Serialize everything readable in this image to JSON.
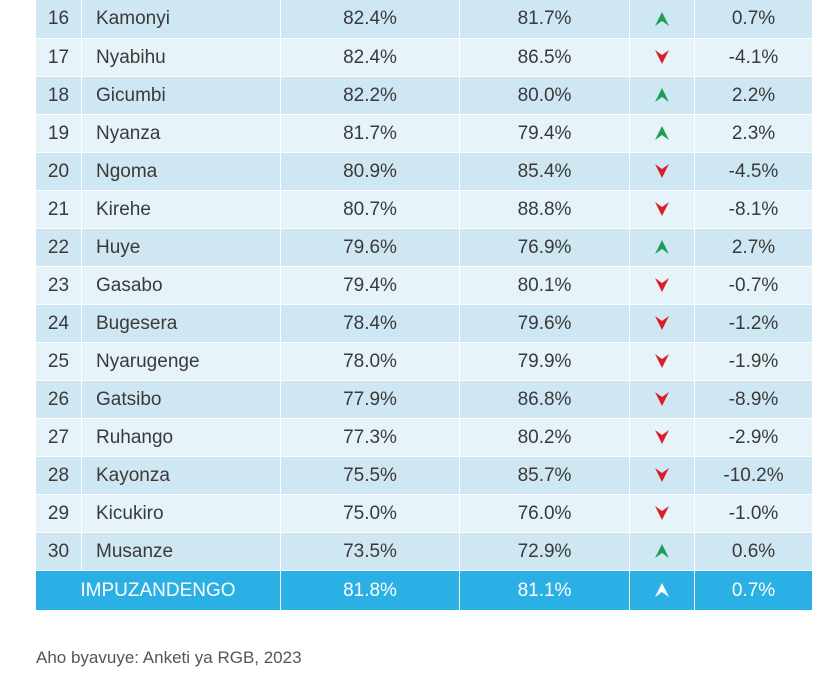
{
  "rows": [
    {
      "rank": "16",
      "district": "Kamonyi",
      "col_a": "82.4%",
      "col_b": "81.7%",
      "trend": "up",
      "diff": "0.7%"
    },
    {
      "rank": "17",
      "district": "Nyabihu",
      "col_a": "82.4%",
      "col_b": "86.5%",
      "trend": "down",
      "diff": "-4.1%"
    },
    {
      "rank": "18",
      "district": "Gicumbi",
      "col_a": "82.2%",
      "col_b": "80.0%",
      "trend": "up",
      "diff": "2.2%"
    },
    {
      "rank": "19",
      "district": "Nyanza",
      "col_a": "81.7%",
      "col_b": "79.4%",
      "trend": "up",
      "diff": "2.3%"
    },
    {
      "rank": "20",
      "district": "Ngoma",
      "col_a": "80.9%",
      "col_b": "85.4%",
      "trend": "down",
      "diff": "-4.5%"
    },
    {
      "rank": "21",
      "district": "Kirehe",
      "col_a": "80.7%",
      "col_b": "88.8%",
      "trend": "down",
      "diff": "-8.1%"
    },
    {
      "rank": "22",
      "district": "Huye",
      "col_a": "79.6%",
      "col_b": "76.9%",
      "trend": "up",
      "diff": "2.7%"
    },
    {
      "rank": "23",
      "district": "Gasabo",
      "col_a": "79.4%",
      "col_b": "80.1%",
      "trend": "down",
      "diff": "-0.7%"
    },
    {
      "rank": "24",
      "district": "Bugesera",
      "col_a": "78.4%",
      "col_b": "79.6%",
      "trend": "down",
      "diff": "-1.2%"
    },
    {
      "rank": "25",
      "district": "Nyarugenge",
      "col_a": "78.0%",
      "col_b": "79.9%",
      "trend": "down",
      "diff": "-1.9%"
    },
    {
      "rank": "26",
      "district": "Gatsibo",
      "col_a": "77.9%",
      "col_b": "86.8%",
      "trend": "down",
      "diff": "-8.9%"
    },
    {
      "rank": "27",
      "district": "Ruhango",
      "col_a": "77.3%",
      "col_b": "80.2%",
      "trend": "down",
      "diff": "-2.9%"
    },
    {
      "rank": "28",
      "district": "Kayonza",
      "col_a": "75.5%",
      "col_b": "85.7%",
      "trend": "down",
      "diff": "-10.2%"
    },
    {
      "rank": "29",
      "district": "Kicukiro",
      "col_a": "75.0%",
      "col_b": "76.0%",
      "trend": "down",
      "diff": "-1.0%"
    },
    {
      "rank": "30",
      "district": "Musanze",
      "col_a": "73.5%",
      "col_b": "72.9%",
      "trend": "up",
      "diff": "0.6%"
    }
  ],
  "total": {
    "label": "IMPUZANDENGO",
    "col_a": "81.8%",
    "col_b": "81.1%",
    "trend": "up",
    "diff": "0.7%"
  },
  "source": "Aho byavuye: Anketi ya RGB, 2023",
  "colors": {
    "up": "#1e9e57",
    "down": "#d9202a",
    "total_bg": "#2bb0e6",
    "row_dark": "#cfe7f2",
    "row_light": "#e6f3f9"
  }
}
